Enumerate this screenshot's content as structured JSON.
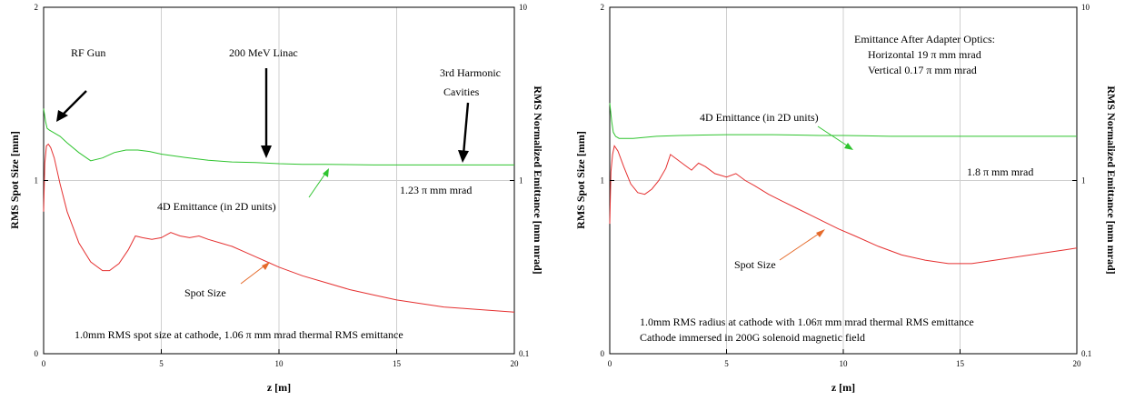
{
  "chart_data": [
    {
      "type": "line",
      "xlabel": "z [m]",
      "ylabel_left": "RMS Spot Size [mm]",
      "ylabel_right": "RMS Normalized Emittance [mm mrad]",
      "xlim": [
        0,
        20
      ],
      "ylim_left": [
        0,
        2
      ],
      "ylim_right": [
        0.1,
        10
      ],
      "right_scale": "log",
      "grid": true,
      "x_ticks": [
        "0",
        "5",
        "10",
        "15",
        "20"
      ],
      "y_ticks_left": [
        "0",
        "1",
        "2"
      ],
      "y_ticks_right": [
        "0.1",
        "1",
        "10"
      ],
      "series": [
        {
          "name": "Spot Size",
          "axis": "left",
          "color": "#e53030",
          "x": [
            0,
            0.05,
            0.12,
            0.2,
            0.3,
            0.45,
            0.7,
            1.0,
            1.5,
            2.0,
            2.5,
            2.8,
            3.2,
            3.6,
            3.9,
            4.2,
            4.6,
            5.0,
            5.4,
            5.8,
            6.2,
            6.6,
            7.0,
            7.5,
            8.0,
            8.5,
            9.0,
            9.5,
            10.0,
            11.0,
            12.0,
            13.0,
            14.0,
            15.0,
            16.0,
            17.0,
            18.0,
            19.0,
            20.0
          ],
          "values": [
            0.82,
            1.1,
            1.2,
            1.21,
            1.19,
            1.13,
            0.98,
            0.82,
            0.64,
            0.53,
            0.48,
            0.48,
            0.52,
            0.6,
            0.68,
            0.67,
            0.66,
            0.67,
            0.7,
            0.68,
            0.67,
            0.68,
            0.66,
            0.64,
            0.62,
            0.59,
            0.56,
            0.53,
            0.5,
            0.45,
            0.41,
            0.37,
            0.34,
            0.31,
            0.29,
            0.27,
            0.26,
            0.25,
            0.24
          ]
        },
        {
          "name": "4D Emittance (in 2D units)",
          "axis": "right",
          "color": "#2fc42f",
          "x": [
            0,
            0.08,
            0.15,
            0.25,
            0.4,
            0.7,
            1.0,
            1.5,
            2.0,
            2.5,
            3.0,
            3.5,
            4.0,
            4.5,
            5.0,
            6.0,
            7.0,
            8.0,
            9.0,
            10.0,
            11.0,
            12.0,
            14.0,
            16.0,
            18.0,
            20.0
          ],
          "values": [
            2.6,
            2.2,
            2.0,
            1.95,
            1.9,
            1.8,
            1.65,
            1.45,
            1.3,
            1.35,
            1.45,
            1.5,
            1.5,
            1.47,
            1.42,
            1.36,
            1.31,
            1.28,
            1.27,
            1.25,
            1.24,
            1.24,
            1.23,
            1.23,
            1.23,
            1.23
          ]
        }
      ],
      "annotations": [
        "RF Gun",
        "200 MeV Linac",
        "3rd Harmonic",
        "Cavities",
        "4D Emittance (in 2D units)",
        "1.23 π mm mrad",
        "Spot Size",
        "1.0mm RMS spot size at cathode, 1.06 π mm mrad thermal RMS emittance"
      ]
    },
    {
      "type": "line",
      "xlabel": "z [m]",
      "ylabel_left": "RMS Spot Size [mm]",
      "ylabel_right": "RMS Normalized Emittance [mm mrad]",
      "xlim": [
        0,
        20
      ],
      "ylim_left": [
        0,
        2
      ],
      "ylim_right": [
        0.1,
        10
      ],
      "right_scale": "log",
      "grid": true,
      "x_ticks": [
        "0",
        "5",
        "10",
        "15",
        "20"
      ],
      "y_ticks_left": [
        "0",
        "1",
        "2"
      ],
      "y_ticks_right": [
        "0.1",
        "1",
        "10"
      ],
      "series": [
        {
          "name": "Spot Size",
          "axis": "left",
          "color": "#e53030",
          "x": [
            0,
            0.05,
            0.12,
            0.2,
            0.35,
            0.6,
            0.9,
            1.2,
            1.5,
            1.8,
            2.1,
            2.4,
            2.6,
            2.9,
            3.2,
            3.5,
            3.8,
            4.1,
            4.5,
            5.0,
            5.4,
            5.8,
            6.2,
            6.8,
            7.4,
            8.0,
            8.6,
            9.2,
            9.8,
            10.5,
            11.5,
            12.5,
            13.5,
            14.5,
            15.5,
            16.5,
            17.5,
            18.5,
            19.5,
            20.0
          ],
          "values": [
            0.75,
            1.05,
            1.15,
            1.2,
            1.17,
            1.08,
            0.98,
            0.93,
            0.92,
            0.95,
            1.0,
            1.07,
            1.15,
            1.12,
            1.09,
            1.06,
            1.1,
            1.08,
            1.04,
            1.02,
            1.04,
            1.0,
            0.97,
            0.92,
            0.88,
            0.84,
            0.8,
            0.76,
            0.72,
            0.68,
            0.62,
            0.57,
            0.54,
            0.52,
            0.52,
            0.54,
            0.56,
            0.58,
            0.6,
            0.61
          ]
        },
        {
          "name": "4D Emittance (in 2D units)",
          "axis": "right",
          "color": "#2fc42f",
          "x": [
            0,
            0.08,
            0.15,
            0.25,
            0.4,
            0.7,
            1.0,
            2.0,
            3.0,
            4.0,
            5.0,
            6.0,
            7.0,
            8.0,
            9.0,
            10.0,
            11.0,
            12.0,
            13.0,
            14.0,
            15.0,
            16.0,
            17.0,
            18.0,
            19.0,
            20.0
          ],
          "values": [
            2.8,
            2.2,
            1.9,
            1.8,
            1.75,
            1.75,
            1.75,
            1.8,
            1.82,
            1.83,
            1.84,
            1.84,
            1.84,
            1.83,
            1.82,
            1.82,
            1.81,
            1.8,
            1.8,
            1.8,
            1.8,
            1.8,
            1.8,
            1.8,
            1.8,
            1.8
          ]
        }
      ],
      "annotations": [
        "Emittance After Adapter Optics:",
        "Horizontal  19 π mm mrad",
        "Vertical   0.17 π mm mrad",
        "4D Emittance (in 2D units)",
        "1.8 π mm mrad",
        "Spot Size",
        "1.0mm RMS radius at cathode with 1.06π mm mrad thermal RMS emittance",
        "Cathode immersed in 200G solenoid magnetic field"
      ]
    }
  ]
}
